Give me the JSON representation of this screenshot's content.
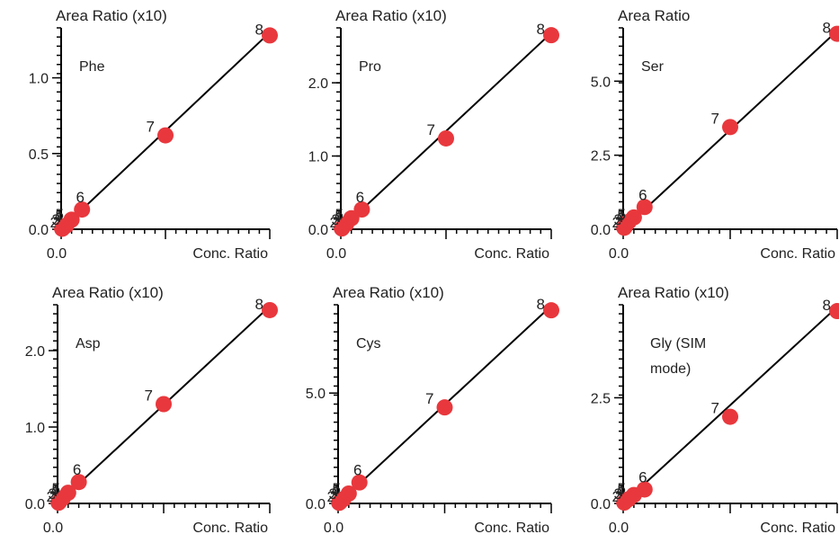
{
  "colors": {
    "point": "#e8383d",
    "axis": "#000000",
    "text": "#222222"
  },
  "chart_data": [
    {
      "type": "scatter",
      "title": "",
      "ylabel": "Area Ratio (x10)",
      "xlabel": "Conc. Ratio",
      "compound": "Phe",
      "xlim": [
        0,
        1
      ],
      "ylim": [
        0,
        1.33
      ],
      "x_ticks": [
        {
          "value": 0.0,
          "label": "0.0"
        }
      ],
      "y_ticks": [
        {
          "value": 0.0,
          "label": "0.0"
        },
        {
          "value": 0.5,
          "label": "0.5"
        },
        {
          "value": 1.0,
          "label": "1.0"
        }
      ],
      "fit_line": [
        [
          0,
          0
        ],
        [
          1,
          1.3
        ]
      ],
      "points": [
        {
          "label": "2",
          "x": 0.005,
          "y": 0.003
        },
        {
          "label": "3",
          "x": 0.01,
          "y": 0.01
        },
        {
          "label": "4",
          "x": 0.025,
          "y": 0.025
        },
        {
          "label": "5",
          "x": 0.05,
          "y": 0.063
        },
        {
          "label": "6",
          "x": 0.1,
          "y": 0.13
        },
        {
          "label": "7",
          "x": 0.5,
          "y": 0.62
        },
        {
          "label": "8",
          "x": 1.0,
          "y": 1.28
        }
      ]
    },
    {
      "type": "scatter",
      "title": "",
      "ylabel": "Area Ratio (x10)",
      "xlabel": "Conc. Ratio",
      "compound": "Pro",
      "xlim": [
        0,
        1
      ],
      "ylim": [
        0,
        2.75
      ],
      "x_ticks": [
        {
          "value": 0.0,
          "label": "0.0"
        }
      ],
      "y_ticks": [
        {
          "value": 0.0,
          "label": "0.0"
        },
        {
          "value": 1.0,
          "label": "1.0"
        },
        {
          "value": 2.0,
          "label": "2.0"
        }
      ],
      "fit_line": [
        [
          0,
          0
        ],
        [
          1,
          2.68
        ]
      ],
      "points": [
        {
          "label": "2",
          "x": 0.005,
          "y": 0.01
        },
        {
          "label": "3",
          "x": 0.01,
          "y": 0.03
        },
        {
          "label": "4",
          "x": 0.025,
          "y": 0.07
        },
        {
          "label": "5",
          "x": 0.05,
          "y": 0.15
        },
        {
          "label": "6",
          "x": 0.1,
          "y": 0.27
        },
        {
          "label": "7",
          "x": 0.5,
          "y": 1.24
        },
        {
          "label": "8",
          "x": 1.0,
          "y": 2.65
        }
      ]
    },
    {
      "type": "scatter",
      "title": "",
      "ylabel": "Area Ratio",
      "xlabel": "Conc. Ratio",
      "compound": "Ser",
      "xlim": [
        0,
        1
      ],
      "ylim": [
        0,
        6.8
      ],
      "x_ticks": [
        {
          "value": 0.0,
          "label": "0.0"
        }
      ],
      "y_ticks": [
        {
          "value": 0.0,
          "label": "0.0"
        },
        {
          "value": 2.5,
          "label": "2.5"
        },
        {
          "value": 5.0,
          "label": "5.0"
        }
      ],
      "fit_line": [
        [
          0,
          0
        ],
        [
          1,
          6.7
        ]
      ],
      "points": [
        {
          "label": "2",
          "x": 0.005,
          "y": 0.05
        },
        {
          "label": "3",
          "x": 0.01,
          "y": 0.1
        },
        {
          "label": "4",
          "x": 0.025,
          "y": 0.25
        },
        {
          "label": "5",
          "x": 0.05,
          "y": 0.4
        },
        {
          "label": "6",
          "x": 0.1,
          "y": 0.75
        },
        {
          "label": "7",
          "x": 0.5,
          "y": 3.45
        },
        {
          "label": "8",
          "x": 1.0,
          "y": 6.6
        }
      ]
    },
    {
      "type": "scatter",
      "title": "",
      "ylabel": "Area Ratio (x10)",
      "xlabel": "Conc. Ratio",
      "compound": "Asp",
      "xlim": [
        0,
        1
      ],
      "ylim": [
        0,
        2.6
      ],
      "x_ticks": [
        {
          "value": 0.0,
          "label": "0.0"
        }
      ],
      "y_ticks": [
        {
          "value": 0.0,
          "label": "0.0"
        },
        {
          "value": 1.0,
          "label": "1.0"
        },
        {
          "value": 2.0,
          "label": "2.0"
        }
      ],
      "fit_line": [
        [
          0,
          0
        ],
        [
          1,
          2.58
        ]
      ],
      "points": [
        {
          "label": "2",
          "x": 0.005,
          "y": 0.01
        },
        {
          "label": "3",
          "x": 0.01,
          "y": 0.03
        },
        {
          "label": "4",
          "x": 0.025,
          "y": 0.07
        },
        {
          "label": "5",
          "x": 0.05,
          "y": 0.14
        },
        {
          "label": "6",
          "x": 0.1,
          "y": 0.28
        },
        {
          "label": "7",
          "x": 0.5,
          "y": 1.3
        },
        {
          "label": "8",
          "x": 1.0,
          "y": 2.53
        }
      ]
    },
    {
      "type": "scatter",
      "title": "",
      "ylabel": "Area Ratio (x10)",
      "xlabel": "Conc. Ratio",
      "compound": "Cys",
      "xlim": [
        0,
        1
      ],
      "ylim": [
        0,
        9.0
      ],
      "x_ticks": [
        {
          "value": 0.0,
          "label": "0.0"
        }
      ],
      "y_ticks": [
        {
          "value": 0.0,
          "label": "0.0"
        },
        {
          "value": 5.0,
          "label": "5.0"
        }
      ],
      "fit_line": [
        [
          0,
          0
        ],
        [
          1,
          8.95
        ]
      ],
      "points": [
        {
          "label": "2",
          "x": 0.005,
          "y": 0.03
        },
        {
          "label": "3",
          "x": 0.01,
          "y": 0.08
        },
        {
          "label": "4",
          "x": 0.025,
          "y": 0.2
        },
        {
          "label": "5",
          "x": 0.05,
          "y": 0.45
        },
        {
          "label": "6",
          "x": 0.1,
          "y": 0.95
        },
        {
          "label": "7",
          "x": 0.5,
          "y": 4.35
        },
        {
          "label": "8",
          "x": 1.0,
          "y": 8.75
        }
      ]
    },
    {
      "type": "scatter",
      "title": "",
      "ylabel": "Area Ratio (x10)",
      "xlabel": "Conc. Ratio",
      "compound": "Gly (SIM mode)",
      "compound_lines": [
        "Gly (SIM",
        "mode)"
      ],
      "xlim": [
        0,
        1
      ],
      "ylim": [
        0,
        4.7
      ],
      "x_ticks": [
        {
          "value": 0.0,
          "label": "0.0"
        }
      ],
      "y_ticks": [
        {
          "value": 0.0,
          "label": "0.0"
        },
        {
          "value": 2.5,
          "label": "2.5"
        }
      ],
      "fit_line": [
        [
          0,
          0
        ],
        [
          1,
          4.65
        ]
      ],
      "points": [
        {
          "label": "2",
          "x": 0.005,
          "y": 0.02
        },
        {
          "label": "3",
          "x": 0.01,
          "y": 0.05
        },
        {
          "label": "4",
          "x": 0.025,
          "y": 0.1
        },
        {
          "label": "5",
          "x": 0.05,
          "y": 0.2
        },
        {
          "label": "6",
          "x": 0.1,
          "y": 0.33
        },
        {
          "label": "7",
          "x": 0.5,
          "y": 2.05
        },
        {
          "label": "8",
          "x": 1.0,
          "y": 4.55
        }
      ]
    }
  ]
}
